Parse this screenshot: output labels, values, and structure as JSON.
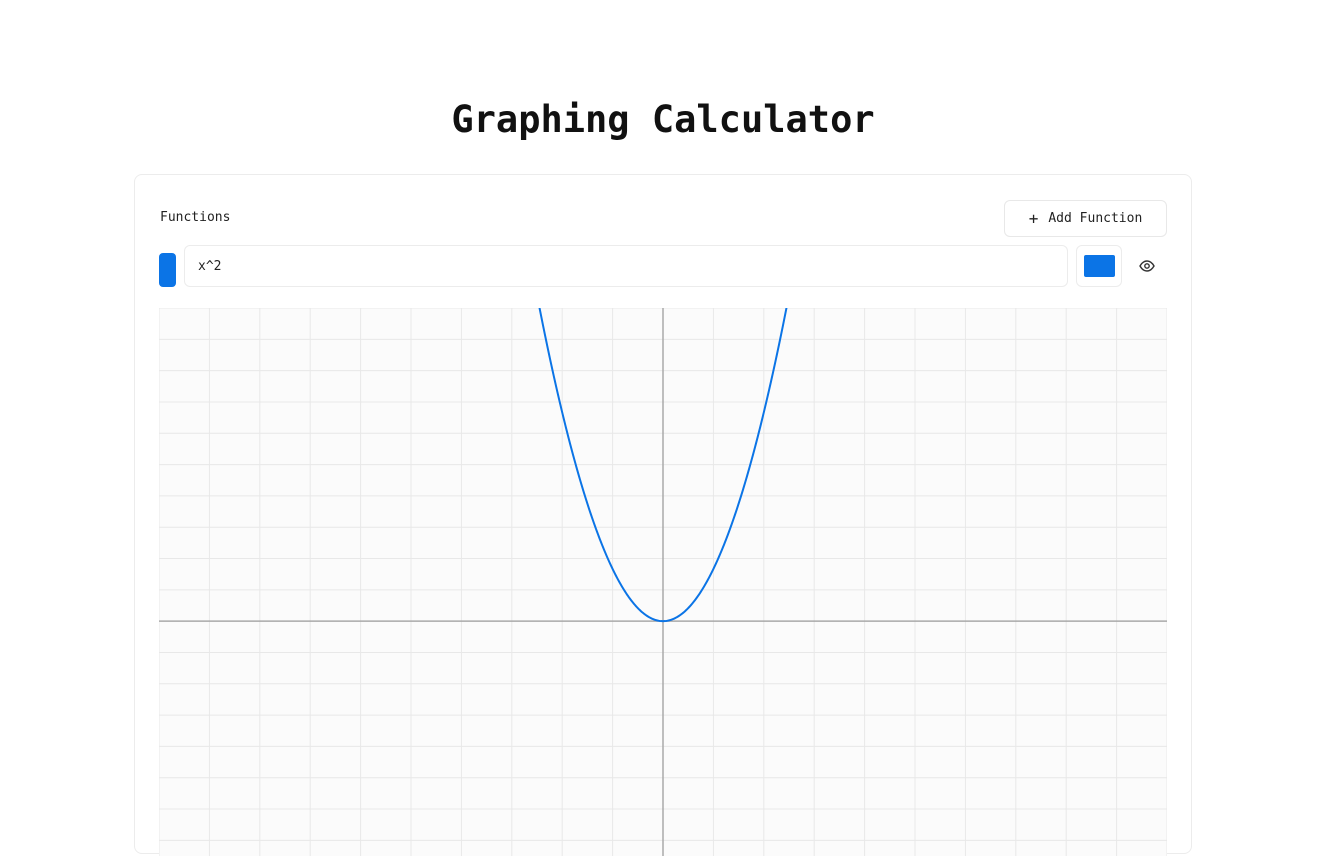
{
  "page": {
    "title": "Graphing Calculator"
  },
  "functions_panel": {
    "label": "Functions",
    "add_button_label": "Add Function",
    "add_button_icon": "plus-icon"
  },
  "functions": [
    {
      "expression": "x^2",
      "color": "#0b74e6",
      "visible": true,
      "visibility_icon": "eye-icon"
    }
  ],
  "chart_data": {
    "type": "line",
    "series": [
      {
        "expression": "x^2",
        "color": "#0b74e6"
      }
    ],
    "xlim": [
      -10,
      10
    ],
    "ylim": [
      -4.5,
      6
    ],
    "grid": true,
    "grid_step": 1,
    "axis_color": "#a9a9a9",
    "grid_color": "#e8e8e8"
  }
}
